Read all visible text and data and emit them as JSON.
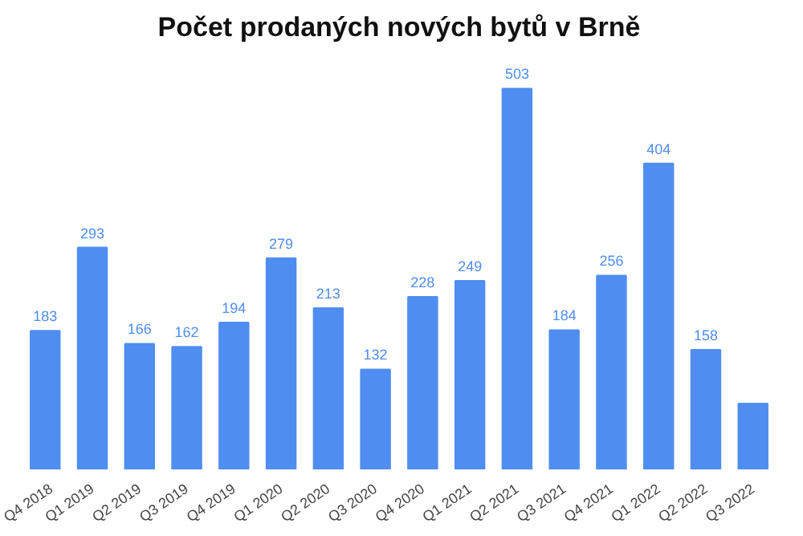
{
  "chart_data": {
    "type": "bar",
    "title": "Počet prodaných nových bytů v Brně",
    "categories": [
      "Q4 2018",
      "Q1 2019",
      "Q2 2019",
      "Q3 2019",
      "Q4 2019",
      "Q1 2020",
      "Q2 2020",
      "Q3 2020",
      "Q4 2020",
      "Q1 2021",
      "Q2 2021",
      "Q3 2021",
      "Q4 2021",
      "Q1 2022",
      "Q2 2022",
      "Q3 2022"
    ],
    "values": [
      183,
      293,
      166,
      162,
      194,
      279,
      213,
      132,
      228,
      249,
      503,
      184,
      256,
      404,
      158,
      87
    ],
    "value_labels": [
      "183",
      "293",
      "166",
      "162",
      "194",
      "279",
      "213",
      "132",
      "228",
      "249",
      "503",
      "184",
      "256",
      "404",
      "158",
      null
    ],
    "color": "#4f8ef0",
    "grid": false
  }
}
